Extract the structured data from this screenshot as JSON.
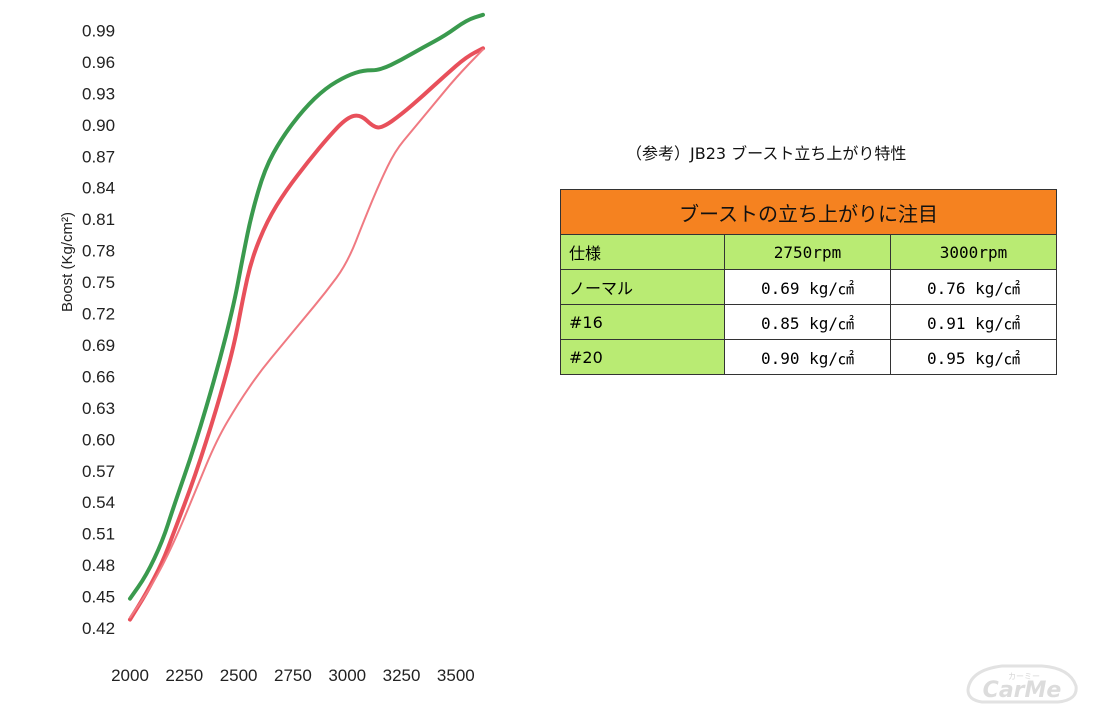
{
  "chart_data": {
    "type": "line",
    "ylabel": "Boost (Kg/cm²)",
    "xlabel": "",
    "x_ticks": [
      "2000",
      "2250",
      "2500",
      "2750",
      "3000",
      "3250",
      "3500"
    ],
    "y_ticks": [
      "0.42",
      "0.45",
      "0.48",
      "0.51",
      "0.54",
      "0.57",
      "0.60",
      "0.63",
      "0.66",
      "0.69",
      "0.72",
      "0.75",
      "0.78",
      "0.81",
      "0.84",
      "0.87",
      "0.90",
      "0.93",
      "0.96",
      "0.99"
    ],
    "xlim": [
      2000,
      3625
    ],
    "ylim": [
      0.42,
      1.0
    ],
    "grid": false,
    "series": [
      {
        "color": "#3a9a4e",
        "width": 4,
        "points": [
          [
            2000,
            0.448
          ],
          [
            2075,
            0.47
          ],
          [
            2150,
            0.503
          ],
          [
            2200,
            0.535
          ],
          [
            2300,
            0.595
          ],
          [
            2400,
            0.665
          ],
          [
            2480,
            0.73
          ],
          [
            2520,
            0.775
          ],
          [
            2560,
            0.815
          ],
          [
            2620,
            0.858
          ],
          [
            2700,
            0.888
          ],
          [
            2800,
            0.915
          ],
          [
            2900,
            0.935
          ],
          [
            3000,
            0.947
          ],
          [
            3075,
            0.952
          ],
          [
            3150,
            0.952
          ],
          [
            3250,
            0.962
          ],
          [
            3350,
            0.974
          ],
          [
            3450,
            0.985
          ],
          [
            3550,
            1.0
          ],
          [
            3625,
            1.005
          ]
        ]
      },
      {
        "color": "#e8505b",
        "width": 4,
        "points": [
          [
            2000,
            0.428
          ],
          [
            2075,
            0.453
          ],
          [
            2150,
            0.483
          ],
          [
            2200,
            0.51
          ],
          [
            2300,
            0.565
          ],
          [
            2400,
            0.63
          ],
          [
            2480,
            0.69
          ],
          [
            2520,
            0.735
          ],
          [
            2560,
            0.772
          ],
          [
            2630,
            0.808
          ],
          [
            2720,
            0.838
          ],
          [
            2820,
            0.865
          ],
          [
            2920,
            0.89
          ],
          [
            3000,
            0.907
          ],
          [
            3060,
            0.91
          ],
          [
            3120,
            0.898
          ],
          [
            3160,
            0.897
          ],
          [
            3250,
            0.91
          ],
          [
            3350,
            0.928
          ],
          [
            3450,
            0.947
          ],
          [
            3550,
            0.965
          ],
          [
            3625,
            0.973
          ]
        ]
      },
      {
        "color": "#f07a82",
        "width": 2,
        "points": [
          [
            2000,
            0.43
          ],
          [
            2100,
            0.46
          ],
          [
            2200,
            0.5
          ],
          [
            2300,
            0.55
          ],
          [
            2400,
            0.6
          ],
          [
            2500,
            0.635
          ],
          [
            2600,
            0.665
          ],
          [
            2700,
            0.69
          ],
          [
            2800,
            0.715
          ],
          [
            2900,
            0.74
          ],
          [
            3000,
            0.768
          ],
          [
            3080,
            0.81
          ],
          [
            3150,
            0.845
          ],
          [
            3220,
            0.875
          ],
          [
            3300,
            0.895
          ],
          [
            3400,
            0.92
          ],
          [
            3500,
            0.945
          ],
          [
            3625,
            0.972
          ]
        ]
      }
    ]
  },
  "reference": {
    "caption": "（参考）JB23 ブースト立ち上がり特性"
  },
  "table": {
    "title": "ブーストの立ち上がりに注目",
    "headers": [
      "仕様",
      "2750rpm",
      "3000rpm"
    ],
    "rows": [
      [
        "ノーマル",
        "0.69 kg/㎠",
        "0.76 kg/㎠"
      ],
      [
        "#16",
        "0.85 kg/㎠",
        "0.91 kg/㎠"
      ],
      [
        "#20",
        "0.90 kg/㎠",
        "0.95 kg/㎠"
      ]
    ],
    "colors": {
      "title_bg": "#f58220",
      "label_bg": "#b9eb73",
      "value_bg": "#ffffff"
    }
  },
  "watermark": {
    "brand": "CarMe",
    "sub": "カーミー"
  }
}
